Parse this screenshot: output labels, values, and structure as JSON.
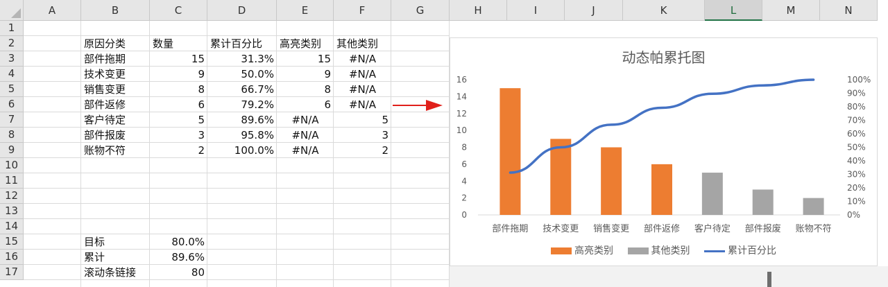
{
  "columns": [
    "A",
    "B",
    "C",
    "D",
    "E",
    "F",
    "G",
    "H",
    "I",
    "J",
    "K",
    "L",
    "M",
    "N"
  ],
  "selected_column": "L",
  "rows": [
    "1",
    "2",
    "3",
    "4",
    "5",
    "6",
    "7",
    "8",
    "9",
    "10",
    "11",
    "12",
    "13",
    "14",
    "15",
    "16",
    "17"
  ],
  "table": {
    "headers": [
      "原因分类",
      "数量",
      "累计百分比",
      "高亮类别",
      "其他类别"
    ],
    "rows": [
      [
        "部件拖期",
        "15",
        "31.3%",
        "15",
        "#N/A"
      ],
      [
        "技术变更",
        "9",
        "50.0%",
        "9",
        "#N/A"
      ],
      [
        "销售变更",
        "8",
        "66.7%",
        "8",
        "#N/A"
      ],
      [
        "部件返修",
        "6",
        "79.2%",
        "6",
        "#N/A"
      ],
      [
        "客户待定",
        "5",
        "89.6%",
        "#N/A",
        "5"
      ],
      [
        "部件报废",
        "3",
        "95.8%",
        "#N/A",
        "3"
      ],
      [
        "账物不符",
        "2",
        "100.0%",
        "#N/A",
        "2"
      ]
    ]
  },
  "summary": [
    {
      "label": "目标",
      "value": "80.0%"
    },
    {
      "label": "累计",
      "value": "89.6%"
    },
    {
      "label": "滚动条链接",
      "value": "80"
    }
  ],
  "colors": {
    "highlight": "#ED7D31",
    "other": "#A5A5A5",
    "line": "#4472C4",
    "arrow": "#E0201B"
  },
  "chart_data": {
    "type": "bar",
    "title": "动态帕累托图",
    "categories": [
      "部件拖期",
      "技术变更",
      "销售变更",
      "部件返修",
      "客户待定",
      "部件报废",
      "账物不符"
    ],
    "series": [
      {
        "name": "高亮类别",
        "type": "bar",
        "values": [
          15,
          9,
          8,
          6,
          null,
          null,
          null
        ]
      },
      {
        "name": "其他类别",
        "type": "bar",
        "values": [
          null,
          null,
          null,
          null,
          5,
          3,
          2
        ]
      },
      {
        "name": "累计百分比",
        "type": "line",
        "axis": "secondary",
        "values": [
          31.3,
          50.0,
          66.7,
          79.2,
          89.6,
          95.8,
          100.0
        ]
      }
    ],
    "ylim": [
      0,
      16
    ],
    "yticks": [
      "0",
      "2",
      "4",
      "6",
      "8",
      "10",
      "12",
      "14",
      "16"
    ],
    "y2lim": [
      0,
      100
    ],
    "y2ticks": [
      "0%",
      "10%",
      "20%",
      "30%",
      "40%",
      "50%",
      "60%",
      "70%",
      "80%",
      "90%",
      "100%"
    ],
    "legend": "bottom",
    "grid": false
  }
}
